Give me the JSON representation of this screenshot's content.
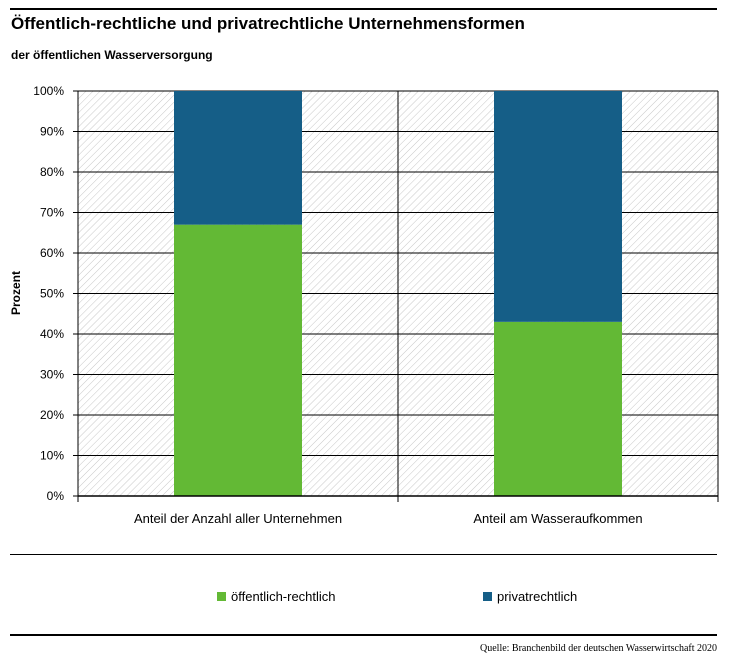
{
  "header": {
    "title": "Öffentlich-rechtliche und privatrechtliche Unternehmensformen",
    "subtitle": "der öffentlichen Wasserversorgung"
  },
  "chart_data": {
    "type": "bar",
    "stacked": true,
    "categories": [
      "Anteil der Anzahl aller Unternehmen",
      "Anteil am Wasseraufkommen"
    ],
    "series": [
      {
        "name": "öffentlich-rechtlich",
        "color": "#63b935",
        "values": [
          67,
          43
        ]
      },
      {
        "name": "privatrechtlich",
        "color": "#155e87",
        "values": [
          33,
          57
        ]
      }
    ],
    "ylabel": "Prozent",
    "xlabel": "",
    "ylim": [
      0,
      100
    ],
    "y_ticks": [
      "0%",
      "10%",
      "20%",
      "30%",
      "40%",
      "50%",
      "60%",
      "70%",
      "80%",
      "90%",
      "100%"
    ],
    "grid": true,
    "background": "hatched",
    "legend_position": "bottom"
  },
  "source": "Quelle: Branchenbild der deutschen Wasserwirtschaft 2020"
}
